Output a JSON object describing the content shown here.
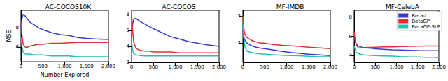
{
  "chart_data": [
    {
      "type": "line",
      "title": "AC-COCOS10K",
      "xlabel": "Number Explored",
      "ylabel": "MSE",
      "x": [
        0,
        25,
        50,
        100,
        150,
        200,
        300,
        400,
        500,
        700,
        900,
        1100,
        1300,
        1500,
        1700,
        2000
      ],
      "xlim": [
        0,
        2000
      ],
      "xticks": [
        0,
        500,
        1000,
        1500,
        2000
      ],
      "ylim": [
        4.5,
        9.8
      ],
      "yticks": [
        6,
        8
      ],
      "grid": false,
      "series": [
        {
          "name": "Beta-I",
          "color": "#3a3ac8",
          "values": [
            8.0,
            9.0,
            9.4,
            9.2,
            8.9,
            8.6,
            8.3,
            8.0,
            7.8,
            7.5,
            7.3,
            7.2,
            7.0,
            6.9,
            6.85,
            6.8
          ]
        },
        {
          "name": "BetaGP",
          "color": "#e0302c",
          "values": [
            8.5,
            7.2,
            6.3,
            6.0,
            6.0,
            6.1,
            6.2,
            6.3,
            6.3,
            6.4,
            6.4,
            6.45,
            6.5,
            6.5,
            6.5,
            6.5
          ]
        },
        {
          "name": "BetaGP-SLP",
          "color": "#22c2b2",
          "values": [
            7.0,
            6.0,
            5.5,
            5.3,
            5.3,
            5.3,
            5.2,
            5.2,
            5.2,
            5.1,
            5.1,
            5.1,
            5.0,
            5.0,
            5.0,
            5.0
          ]
        }
      ]
    },
    {
      "type": "line",
      "title": "AC-COCOS",
      "x": [
        0,
        25,
        50,
        100,
        150,
        200,
        300,
        400,
        500,
        700,
        900,
        1100,
        1300,
        1500,
        1700,
        2000
      ],
      "xlim": [
        0,
        2000
      ],
      "xticks": [
        0,
        500,
        1000,
        1500,
        2000
      ],
      "ylim": [
        2,
        8.5
      ],
      "yticks": [
        2,
        4,
        6,
        8
      ],
      "grid": false,
      "series": [
        {
          "name": "Beta-I",
          "color": "#3a3ac8",
          "values": [
            5.0,
            6.8,
            7.4,
            7.5,
            7.3,
            7.1,
            6.8,
            6.5,
            6.2,
            5.7,
            5.2,
            4.9,
            4.6,
            4.4,
            4.2,
            4.0
          ]
        },
        {
          "name": "BetaGP",
          "color": "#e0302c",
          "values": [
            8.0,
            6.0,
            4.5,
            3.8,
            3.6,
            3.5,
            3.4,
            3.4,
            3.3,
            3.3,
            3.3,
            3.2,
            3.2,
            3.2,
            3.2,
            3.2
          ]
        },
        {
          "name": "BetaGP-SLP",
          "color": "#22c2b2",
          "values": [
            4.5,
            3.5,
            3.1,
            2.9,
            2.9,
            2.85,
            2.8,
            2.8,
            2.8,
            2.8,
            2.8,
            2.8,
            2.8,
            2.8,
            2.8,
            2.8
          ]
        }
      ]
    },
    {
      "type": "line",
      "title": "MF-IMDB",
      "x": [
        0,
        25,
        50,
        100,
        150,
        200,
        300,
        400,
        500,
        700,
        900,
        1100,
        1300,
        1500,
        1700,
        2000
      ],
      "xlim": [
        0,
        2000
      ],
      "xticks": [
        0,
        500,
        1000,
        1500,
        2000
      ],
      "ylim": [
        1.3,
        3.2
      ],
      "yticks": [
        2,
        3
      ],
      "grid": false,
      "series": [
        {
          "name": "Beta-I",
          "color": "#3a3ac8",
          "values": [
            2.5,
            2.2,
            2.1,
            2.0,
            1.95,
            1.9,
            1.85,
            1.82,
            1.8,
            1.75,
            1.7,
            1.66,
            1.63,
            1.6,
            1.58,
            1.55
          ]
        },
        {
          "name": "BetaGP",
          "color": "#e0302c",
          "values": [
            3.0,
            2.5,
            2.3,
            2.2,
            2.15,
            2.1,
            2.05,
            2.0,
            2.0,
            1.95,
            1.92,
            1.9,
            1.88,
            1.85,
            1.83,
            1.8
          ]
        },
        {
          "name": "BetaGP-SLP",
          "color": "#22c2b2",
          "values": [
            2.7,
            2.1,
            1.85,
            1.7,
            1.68,
            1.66,
            1.63,
            1.61,
            1.6,
            1.58,
            1.56,
            1.55,
            1.54,
            1.52,
            1.51,
            1.5
          ]
        }
      ]
    },
    {
      "type": "line",
      "title": "MF-CelebA",
      "legend": "upper right",
      "x": [
        0,
        25,
        50,
        100,
        150,
        200,
        300,
        400,
        500,
        700,
        900,
        1100,
        1300,
        1500,
        1700,
        2000
      ],
      "xlim": [
        0,
        2000
      ],
      "xticks": [
        0,
        500,
        1000,
        1500,
        2000
      ],
      "ylim": [
        3.3,
        8.7
      ],
      "yticks": [
        4,
        6,
        8
      ],
      "grid": false,
      "series": [
        {
          "name": "Beta-I",
          "color": "#3a3ac8",
          "values": [
            6.0,
            5.5,
            5.2,
            5.0,
            4.9,
            4.85,
            4.8,
            4.75,
            4.7,
            4.65,
            4.6,
            4.58,
            4.55,
            4.52,
            4.5,
            4.5
          ]
        },
        {
          "name": "BetaGP",
          "color": "#e0302c",
          "values": [
            6.5,
            5.6,
            5.1,
            4.8,
            4.8,
            4.82,
            4.85,
            4.85,
            4.87,
            4.9,
            4.9,
            4.93,
            4.95,
            4.97,
            5.0,
            5.0
          ]
        },
        {
          "name": "BetaGP-SLP",
          "color": "#22c2b2",
          "values": [
            5.0,
            4.6,
            4.35,
            4.2,
            4.15,
            4.1,
            4.05,
            4.02,
            4.0,
            3.97,
            3.94,
            3.9,
            3.87,
            3.85,
            3.82,
            3.8
          ]
        }
      ]
    }
  ]
}
